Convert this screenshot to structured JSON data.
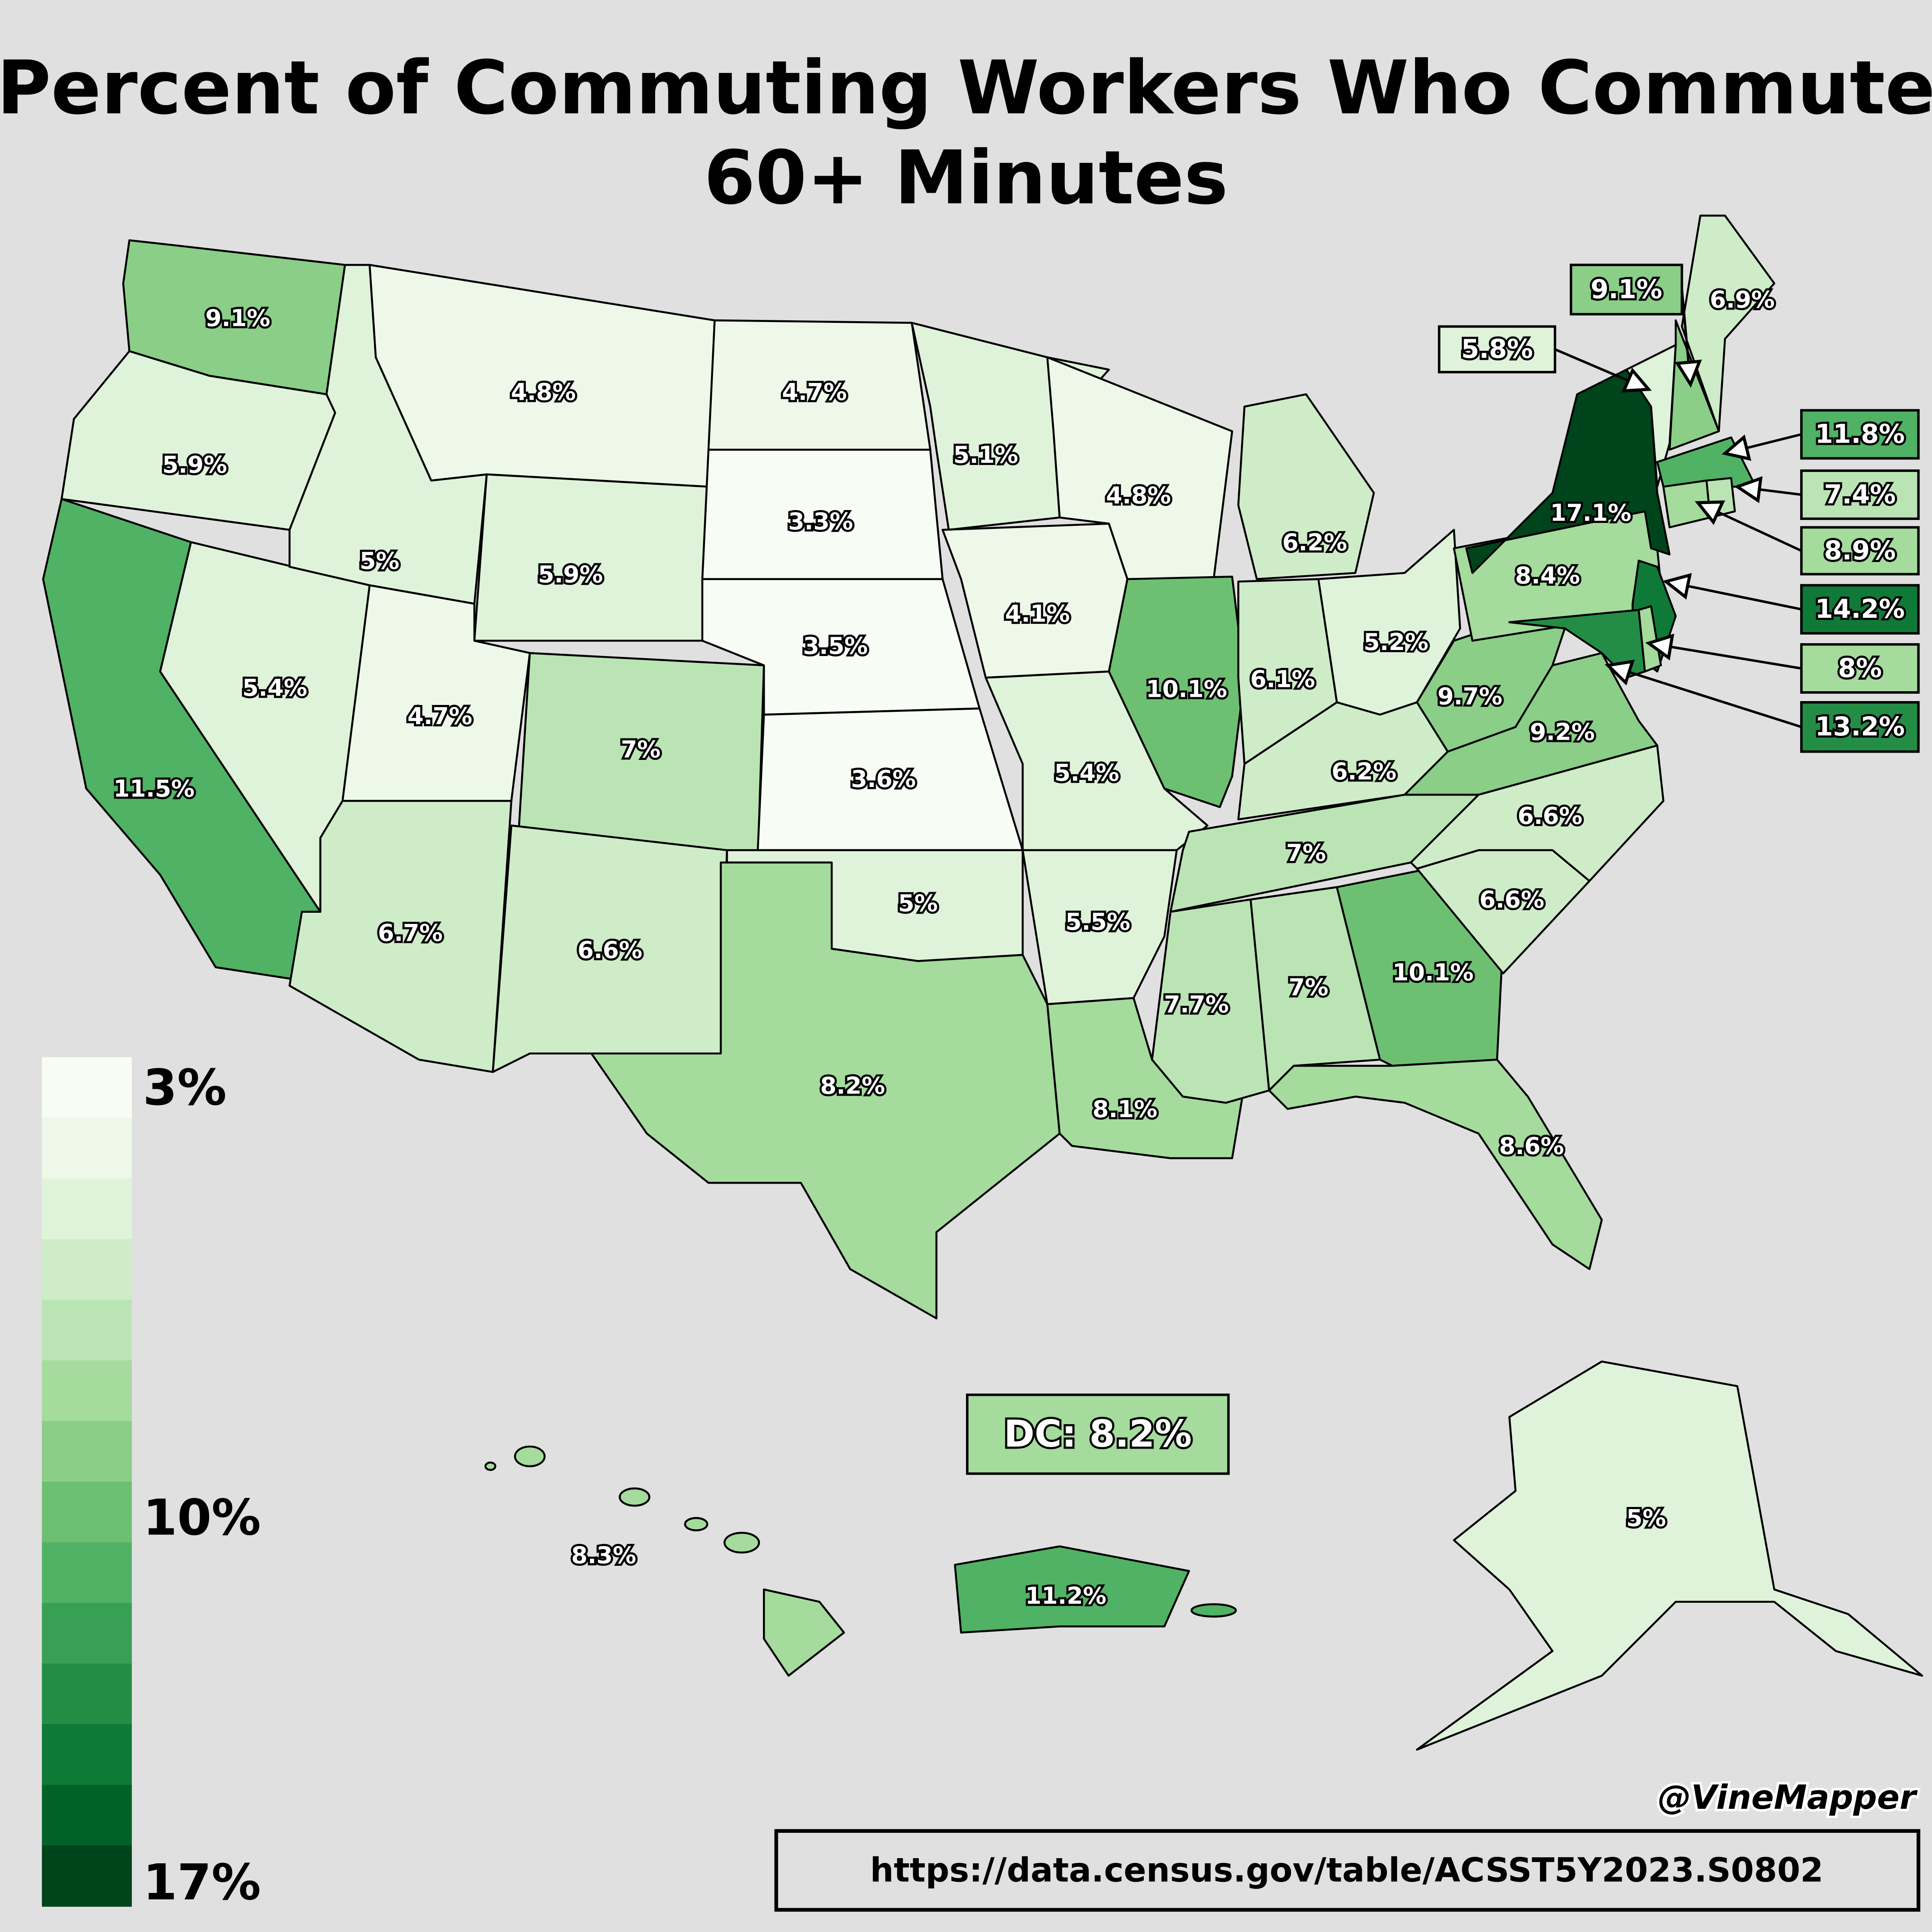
{
  "title": {
    "line1": "Percent of Commuting Workers Who Commute",
    "line2": "60+ Minutes"
  },
  "credit": "@VineMapper",
  "source_url": "https://data.census.gov/table/ACSST5Y2023.S0802",
  "dc_box": {
    "label": "DC: 8.2%",
    "value": 8.2
  },
  "legend": {
    "min_label": "3%",
    "mid_label": "10%",
    "max_label": "17%",
    "bins": [
      "#f7fcf5",
      "#edf8e9",
      "#dff3da",
      "#cfecc8",
      "#bbe4b4",
      "#a5db9d",
      "#8ace88",
      "#6dc072",
      "#50b264",
      "#37a055",
      "#238d46",
      "#0f7a37",
      "#006227",
      "#00441b"
    ],
    "min": 3,
    "max": 17
  },
  "states": {
    "WA": {
      "value": 9.1,
      "label": "9.1%"
    },
    "OR": {
      "value": 5.9,
      "label": "5.9%"
    },
    "CA": {
      "value": 11.5,
      "label": "11.5%"
    },
    "NV": {
      "value": 5.4,
      "label": "5.4%"
    },
    "ID": {
      "value": 5.0,
      "label": "5%"
    },
    "MT": {
      "value": 4.8,
      "label": "4.8%"
    },
    "WY": {
      "value": 5.9,
      "label": "5.9%"
    },
    "UT": {
      "value": 4.7,
      "label": "4.7%"
    },
    "CO": {
      "value": 7.0,
      "label": "7%"
    },
    "AZ": {
      "value": 6.7,
      "label": "6.7%"
    },
    "NM": {
      "value": 6.6,
      "label": "6.6%"
    },
    "ND": {
      "value": 4.7,
      "label": "4.7%"
    },
    "SD": {
      "value": 3.3,
      "label": "3.3%"
    },
    "NE": {
      "value": 3.5,
      "label": "3.5%"
    },
    "KS": {
      "value": 3.6,
      "label": "3.6%"
    },
    "OK": {
      "value": 5.0,
      "label": "5%"
    },
    "TX": {
      "value": 8.2,
      "label": "8.2%"
    },
    "MN": {
      "value": 5.1,
      "label": "5.1%"
    },
    "IA": {
      "value": 4.1,
      "label": "4.1%"
    },
    "MO": {
      "value": 5.4,
      "label": "5.4%"
    },
    "AR": {
      "value": 5.5,
      "label": "5.5%"
    },
    "LA": {
      "value": 8.1,
      "label": "8.1%"
    },
    "WI": {
      "value": 4.8,
      "label": "4.8%"
    },
    "IL": {
      "value": 10.1,
      "label": "10.1%"
    },
    "MI": {
      "value": 6.2,
      "label": "6.2%"
    },
    "IN": {
      "value": 6.1,
      "label": "6.1%"
    },
    "OH": {
      "value": 5.2,
      "label": "5.2%"
    },
    "KY": {
      "value": 6.2,
      "label": "6.2%"
    },
    "TN": {
      "value": 7.0,
      "label": "7%"
    },
    "MS": {
      "value": 7.7,
      "label": "7.7%"
    },
    "AL": {
      "value": 7.0,
      "label": "7%"
    },
    "GA": {
      "value": 10.1,
      "label": "10.1%"
    },
    "FL": {
      "value": 8.6,
      "label": "8.6%"
    },
    "SC": {
      "value": 6.6,
      "label": "6.6%"
    },
    "NC": {
      "value": 6.6,
      "label": "6.6%"
    },
    "VA": {
      "value": 9.2,
      "label": "9.2%"
    },
    "WV": {
      "value": 9.7,
      "label": "9.7%"
    },
    "PA": {
      "value": 8.4,
      "label": "8.4%"
    },
    "NY": {
      "value": 17.1,
      "label": "17.1%"
    },
    "NJ": {
      "value": 14.2,
      "label": "14.2%"
    },
    "MD": {
      "value": 13.2,
      "label": "13.2%"
    },
    "DE": {
      "value": 8.0,
      "label": "8%"
    },
    "VT": {
      "value": 5.8,
      "label": "5.8%"
    },
    "NH": {
      "value": 9.1,
      "label": "9.1%"
    },
    "ME": {
      "value": 6.9,
      "label": "6.9%"
    },
    "MA": {
      "value": 11.8,
      "label": "11.8%"
    },
    "CT": {
      "value": 8.9,
      "label": "8.9%"
    },
    "RI": {
      "value": 7.4,
      "label": "7.4%"
    },
    "AK": {
      "value": 5.0,
      "label": "5%"
    },
    "HI": {
      "value": 8.3,
      "label": "8.3%"
    },
    "PR": {
      "value": 11.2,
      "label": "11.2%"
    }
  }
}
